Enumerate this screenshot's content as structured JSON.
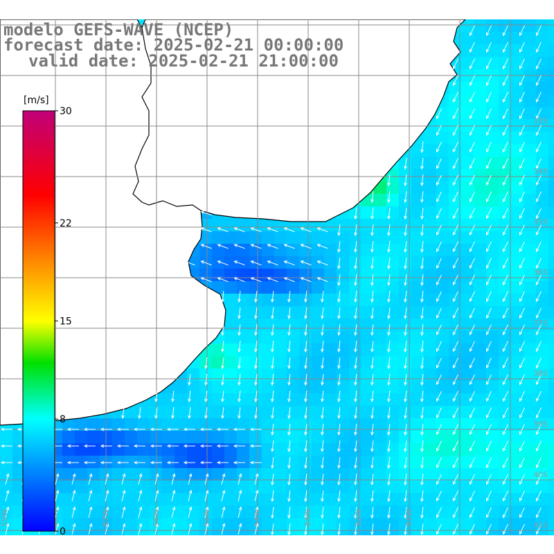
{
  "title": {
    "line1": "modelo GEFS-WAVE (NCEP)",
    "line2": "forecast date: 2025-02-21 00:00:00",
    "line3": "valid date: 2025-02-21 21:00:00"
  },
  "colorbar": {
    "unit": "[m/s]",
    "min": 0,
    "max": 30,
    "ticks": [
      {
        "value": 30,
        "label": "30"
      },
      {
        "value": 22,
        "label": "22"
      },
      {
        "value": 15,
        "label": "15"
      },
      {
        "value": 8,
        "label": "8"
      },
      {
        "value": 0,
        "label": "0"
      }
    ],
    "stops": [
      {
        "value": 0,
        "color": "#0000ff"
      },
      {
        "value": 8,
        "color": "#00ffff"
      },
      {
        "value": 12,
        "color": "#00e000"
      },
      {
        "value": 15,
        "color": "#ffff00"
      },
      {
        "value": 19,
        "color": "#ff9000"
      },
      {
        "value": 24,
        "color": "#ff0000"
      },
      {
        "value": 30,
        "color": "#c0007a"
      }
    ]
  },
  "map": {
    "land_color": "#ffffff",
    "coast_color": "#000000",
    "grid_color": "#888888",
    "arrow_color": "#ffffff",
    "lat_labels": [
      "33S",
      "34S",
      "35S",
      "36S",
      "37S",
      "38S",
      "39S",
      "40S",
      "41S"
    ],
    "lon_labels": [
      "59W",
      "58W",
      "57W",
      "56W",
      "55W",
      "54W",
      "53W",
      "52W",
      "51W"
    ]
  }
}
